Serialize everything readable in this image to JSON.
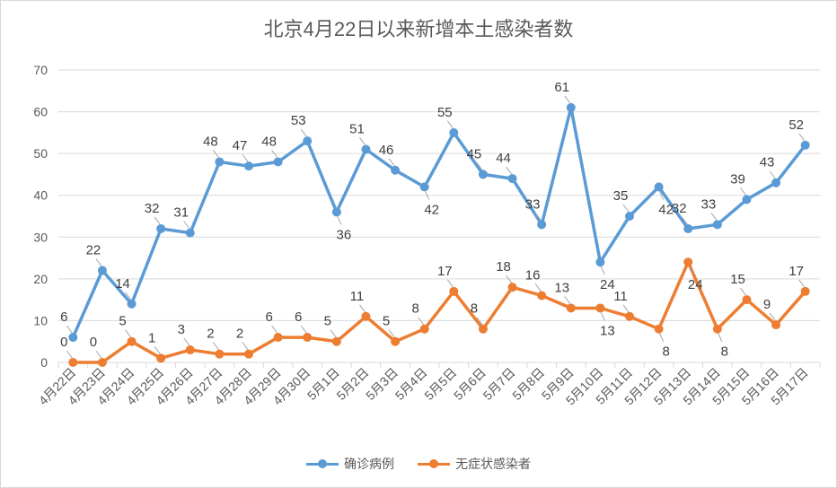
{
  "chart_data": {
    "type": "line",
    "title": "北京4月22日以来新增本土感染者数",
    "xlabel": "",
    "ylabel": "",
    "ylim": [
      0,
      70
    ],
    "yticks": [
      0,
      10,
      20,
      30,
      40,
      50,
      60,
      70
    ],
    "grid": true,
    "legend_position": "bottom",
    "categories": [
      "4月22日",
      "4月23日",
      "4月24日",
      "4月25日",
      "4月26日",
      "4月27日",
      "4月28日",
      "4月29日",
      "4月30日",
      "5月1日",
      "5月2日",
      "5月3日",
      "5月4日",
      "5月5日",
      "5月6日",
      "5月7日",
      "5月8日",
      "5月9日",
      "5月10日",
      "5月11日",
      "5月12日",
      "5月13日",
      "5月14日",
      "5月15日",
      "5月16日",
      "5月17日"
    ],
    "series": [
      {
        "name": "确诊病例",
        "color": "#5b9bd5",
        "values": [
          6,
          22,
          14,
          32,
          31,
          48,
          47,
          48,
          53,
          36,
          51,
          46,
          42,
          55,
          45,
          44,
          33,
          61,
          24,
          35,
          42,
          32,
          33,
          39,
          43,
          52
        ]
      },
      {
        "name": "无症状感染者",
        "color": "#ed7d31",
        "values": [
          0,
          0,
          5,
          1,
          3,
          2,
          2,
          6,
          6,
          5,
          11,
          5,
          8,
          17,
          8,
          18,
          16,
          13,
          13,
          11,
          8,
          24,
          8,
          15,
          9,
          17
        ]
      }
    ]
  }
}
